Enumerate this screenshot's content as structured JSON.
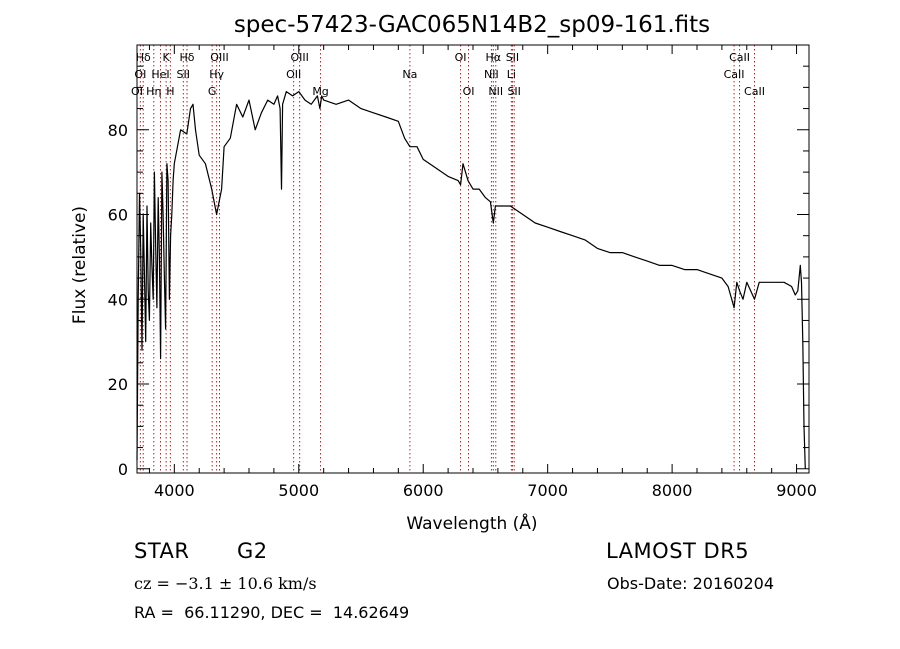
{
  "chart_data": {
    "type": "line",
    "title": "spec-57423-GAC065N14B2_sp09-161.fits",
    "xlabel": "Wavelength (Å)",
    "ylabel": "Flux (relative)",
    "xlim": [
      3700,
      9100
    ],
    "ylim": [
      -1,
      100
    ],
    "xticks": [
      4000,
      5000,
      6000,
      7000,
      8000,
      9000
    ],
    "yticks": [
      0,
      20,
      40,
      60,
      80
    ],
    "xtick_labels": [
      "4000",
      "5000",
      "6000",
      "7000",
      "8000",
      "9000"
    ],
    "ytick_labels": [
      "0",
      "20",
      "40",
      "60",
      "80"
    ],
    "series": [
      {
        "values_x": [
          3700,
          3710,
          3720,
          3730,
          3740,
          3750,
          3760,
          3770,
          3780,
          3790,
          3800,
          3810,
          3820,
          3830,
          3840,
          3850,
          3860,
          3870,
          3880,
          3890,
          3900,
          3910,
          3920,
          3930,
          3940,
          3950,
          3960,
          3970,
          3980,
          3990,
          4000,
          4050,
          4100,
          4130,
          4150,
          4170,
          4200,
          4250,
          4300,
          4340,
          4380,
          4400,
          4450,
          4500,
          4550,
          4600,
          4650,
          4700,
          4750,
          4800,
          4830,
          4850,
          4861,
          4870,
          4900,
          4950,
          5000,
          5050,
          5100,
          5150,
          5170,
          5184,
          5200,
          5300,
          5400,
          5500,
          5600,
          5700,
          5800,
          5850,
          5893,
          5950,
          6000,
          6100,
          6200,
          6280,
          6300,
          6320,
          6360,
          6400,
          6450,
          6500,
          6540,
          6563,
          6580,
          6620,
          6700,
          6800,
          6900,
          7000,
          7100,
          7200,
          7300,
          7400,
          7500,
          7600,
          7700,
          7800,
          7900,
          8000,
          8100,
          8200,
          8300,
          8400,
          8450,
          8498,
          8520,
          8542,
          8570,
          8600,
          8662,
          8700,
          8800,
          8900,
          8960,
          8990,
          9010,
          9030,
          9040,
          9050,
          9060,
          9070
        ],
        "values_y": [
          2,
          40,
          65,
          52,
          28,
          60,
          45,
          30,
          62,
          42,
          35,
          58,
          48,
          40,
          70,
          52,
          38,
          64,
          50,
          26,
          70,
          60,
          45,
          33,
          72,
          68,
          40,
          55,
          60,
          68,
          72,
          80,
          79,
          85,
          86,
          80,
          74,
          72,
          66,
          60,
          66,
          76,
          78,
          86,
          83,
          87,
          80,
          84,
          87,
          86,
          88,
          85,
          66,
          86,
          89,
          88,
          89,
          87,
          86,
          88,
          85,
          88,
          87,
          86,
          87,
          85,
          84,
          83,
          82,
          78,
          76,
          76,
          73,
          71,
          69,
          68,
          67,
          72,
          68,
          66,
          66,
          64,
          63,
          58,
          62,
          62,
          62,
          60,
          58,
          57,
          56,
          55,
          54,
          52,
          51,
          51,
          50,
          49,
          48,
          48,
          47,
          47,
          46,
          45,
          43,
          38,
          44,
          42,
          40,
          44,
          40,
          44,
          44,
          44,
          43,
          41,
          42,
          48,
          44,
          30,
          10,
          0
        ]
      }
    ],
    "line_ids": [
      {
        "name": "Hδ",
        "wl": 3750,
        "row": 0
      },
      {
        "name": "K",
        "wl": 3934,
        "row": 0
      },
      {
        "name": "Hδ",
        "wl": 4102,
        "row": 0
      },
      {
        "name": "OIII",
        "wl": 4363,
        "row": 0
      },
      {
        "name": "OIII",
        "wl": 5007,
        "row": 0
      },
      {
        "name": "OI",
        "wl": 6300,
        "row": 0
      },
      {
        "name": "Hα",
        "wl": 6563,
        "row": 0
      },
      {
        "name": "SII",
        "wl": 6717,
        "row": 0
      },
      {
        "name": "CaII",
        "wl": 8542,
        "row": 0
      },
      {
        "name": "OI",
        "wl": 3727,
        "row": 1
      },
      {
        "name": "HeI",
        "wl": 3889,
        "row": 1
      },
      {
        "name": "SII",
        "wl": 4072,
        "row": 1
      },
      {
        "name": "Hγ",
        "wl": 4340,
        "row": 1
      },
      {
        "name": "OII",
        "wl": 4959,
        "row": 1
      },
      {
        "name": "Na",
        "wl": 5893,
        "row": 1
      },
      {
        "name": "NII",
        "wl": 6548,
        "row": 1
      },
      {
        "name": "Li",
        "wl": 6708,
        "row": 1
      },
      {
        "name": "CaII",
        "wl": 8498,
        "row": 1
      },
      {
        "name": "OI",
        "wl": 3700,
        "row": 2
      },
      {
        "name": "Hη",
        "wl": 3835,
        "row": 2
      },
      {
        "name": "H",
        "wl": 3968,
        "row": 2
      },
      {
        "name": "G",
        "wl": 4304,
        "row": 2
      },
      {
        "name": "Mg",
        "wl": 5175,
        "row": 2
      },
      {
        "name": "OI",
        "wl": 6364,
        "row": 2
      },
      {
        "name": "NII",
        "wl": 6583,
        "row": 2
      },
      {
        "name": "SII",
        "wl": 6731,
        "row": 2
      },
      {
        "name": "CaII",
        "wl": 8662,
        "row": 2
      }
    ]
  },
  "info": {
    "object_class": "STAR",
    "subclass": "G2",
    "survey": "LAMOST DR5",
    "cz_line": "cz = −3.1 ± 10.6 km/s",
    "obs_date": "Obs-Date: 20160204",
    "coords": "RA =  66.11290, DEC =  14.62649"
  },
  "colors": {
    "spectrum": "#000000",
    "line_markers": "#b22222",
    "axes": "#000000"
  }
}
